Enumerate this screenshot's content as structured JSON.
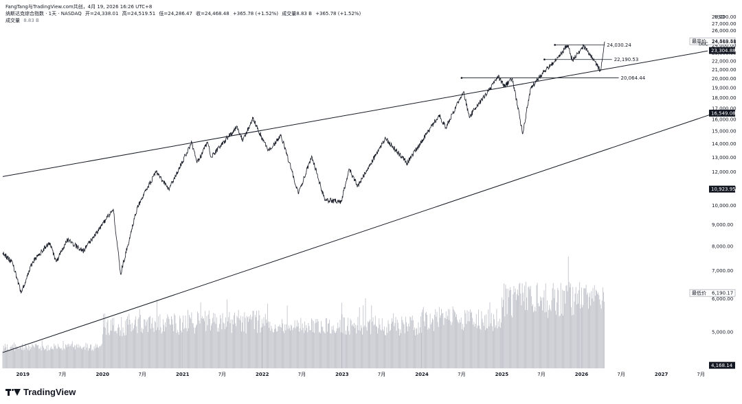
{
  "header": {
    "author_line": "FangTang与TradingView.com共创，4月 19, 2026 16:26 UTC+8",
    "symbol_name": "纳斯达克综合指数 · 1天 · NASDAQ",
    "open": "开=24,338.01",
    "high": "高=24,519.51",
    "low": "低=24,286.47",
    "close": "收=24,468.48",
    "change": "+365.78 (+1.52%)",
    "volume_label": "成交量8.83 B",
    "volume_change": "+365.78 (+1.52%)",
    "volume_pane_label": "成交量",
    "volume_pane_value": "8.83 B"
  },
  "footer": {
    "brand": "TradingView"
  },
  "chart_data": {
    "type": "line",
    "currency": "USD",
    "scale": "log",
    "ylim": [
      4100,
      28500
    ],
    "xlim": [
      "2018-10",
      "2027-08"
    ],
    "y_ticks": [
      "28,000.00",
      "27,000.00",
      "26,000.00",
      "24,000.00",
      "23,000.00",
      "22,000.00",
      "21,000.00",
      "20,000.00",
      "19,000.00",
      "18,000.00",
      "17,000.00",
      "16,000.00",
      "15,000.00",
      "14,000.00",
      "13,000.00",
      "12,000.00",
      "11,000.00",
      "10,000.00",
      "9,000.00",
      "8,000.00",
      "7,000.00",
      "6,000.00",
      "5,000.00"
    ],
    "x_ticks": [
      {
        "date": "2019-01",
        "label": "2019"
      },
      {
        "date": "2019-07",
        "label": "7月"
      },
      {
        "date": "2020-01",
        "label": "2020"
      },
      {
        "date": "2020-07",
        "label": "7月"
      },
      {
        "date": "2021-01",
        "label": "2021"
      },
      {
        "date": "2021-07",
        "label": "7月"
      },
      {
        "date": "2022-01",
        "label": "2022"
      },
      {
        "date": "2022-07",
        "label": "7月"
      },
      {
        "date": "2023-01",
        "label": "2023"
      },
      {
        "date": "2023-07",
        "label": "7月"
      },
      {
        "date": "2024-01",
        "label": "2024"
      },
      {
        "date": "2024-07",
        "label": "7月"
      },
      {
        "date": "2025-01",
        "label": "2025"
      },
      {
        "date": "2025-07",
        "label": "7月"
      },
      {
        "date": "2026-01",
        "label": "2026"
      },
      {
        "date": "2026-07",
        "label": "7月"
      },
      {
        "date": "2027-01",
        "label": "2027"
      },
      {
        "date": "2027-07",
        "label": "7月"
      }
    ],
    "series": [
      {
        "symbol": "IXIC",
        "points": [
          [
            "2018-10-01",
            7700
          ],
          [
            "2018-11-15",
            7300
          ],
          [
            "2018-12-24",
            6190
          ],
          [
            "2019-02-15",
            7350
          ],
          [
            "2019-05-03",
            8150
          ],
          [
            "2019-06-03",
            7330
          ],
          [
            "2019-07-26",
            8300
          ],
          [
            "2019-10-03",
            7780
          ],
          [
            "2019-12-31",
            9000
          ],
          [
            "2020-02-19",
            9800
          ],
          [
            "2020-03-23",
            6860
          ],
          [
            "2020-06-08",
            9900
          ],
          [
            "2020-09-02",
            12000
          ],
          [
            "2020-10-30",
            10900
          ],
          [
            "2021-02-12",
            14100
          ],
          [
            "2021-03-08",
            12600
          ],
          [
            "2021-04-26",
            14100
          ],
          [
            "2021-05-12",
            13000
          ],
          [
            "2021-09-07",
            15400
          ],
          [
            "2021-10-04",
            14250
          ],
          [
            "2021-11-19",
            16060
          ],
          [
            "2022-01-27",
            13500
          ],
          [
            "2022-03-29",
            14600
          ],
          [
            "2022-06-16",
            10650
          ],
          [
            "2022-08-15",
            13100
          ],
          [
            "2022-10-13",
            10300
          ],
          [
            "2022-12-28",
            10200
          ],
          [
            "2023-02-02",
            12200
          ],
          [
            "2023-03-13",
            11100
          ],
          [
            "2023-07-19",
            14400
          ],
          [
            "2023-10-26",
            12600
          ],
          [
            "2024-03-21",
            16400
          ],
          [
            "2024-04-19",
            15280
          ],
          [
            "2024-07-10",
            18600
          ],
          [
            "2024-08-05",
            16200
          ],
          [
            "2024-12-16",
            20170
          ],
          [
            "2025-01-13",
            19100
          ],
          [
            "2025-02-18",
            20060
          ],
          [
            "2025-04-07",
            14780
          ],
          [
            "2025-05-13",
            19000
          ],
          [
            "2025-07-28",
            21200
          ],
          [
            "2025-09-10",
            22200
          ],
          [
            "2025-10-29",
            24020
          ],
          [
            "2025-11-20",
            22100
          ],
          [
            "2026-01-10",
            23900
          ],
          [
            "2026-02-20",
            22400
          ],
          [
            "2026-03-10",
            21600
          ],
          [
            "2026-03-28",
            20850
          ],
          [
            "2026-04-10",
            23000
          ],
          [
            "2026-04-17",
            24468
          ]
        ]
      }
    ],
    "volume": {
      "unit": "B",
      "last": 8.83,
      "segments": [
        {
          "from": "2018-10",
          "to": "2019-12",
          "min": 1.9,
          "max": 2.7
        },
        {
          "from": "2020-01",
          "to": "2020-12",
          "min": 3.5,
          "max": 6.0
        },
        {
          "from": "2021-01",
          "to": "2021-12",
          "min": 3.8,
          "max": 6.4
        },
        {
          "from": "2022-01",
          "to": "2022-12",
          "min": 3.8,
          "max": 5.6
        },
        {
          "from": "2023-01",
          "to": "2023-12",
          "min": 3.6,
          "max": 5.8
        },
        {
          "from": "2024-01",
          "to": "2024-12",
          "min": 4.0,
          "max": 6.5
        },
        {
          "from": "2025-01",
          "to": "2025-12",
          "min": 5.5,
          "max": 9.5
        },
        {
          "from": "2026-01",
          "to": "2026-04",
          "min": 6.5,
          "max": 9.2
        }
      ]
    },
    "channel_lines": [
      {
        "name": "upper",
        "from": [
          "2018-10-01",
          11700
        ],
        "to": [
          "2027-08-01",
          23250
        ]
      },
      {
        "name": "lower",
        "from": [
          "2018-10-01",
          4470
        ],
        "to": [
          "2027-09-01",
          16540
        ]
      }
    ],
    "horizontal_levels": [
      {
        "value": 24030.24,
        "label": "24,030.24",
        "from": "2025-09-01",
        "to": "2026-04-17"
      },
      {
        "value": 22190.53,
        "label": "22,190.53",
        "from": "2025-07-15",
        "to": "2026-05-20"
      },
      {
        "value": 20064.44,
        "label": "20,064.44",
        "from": "2024-07-01",
        "to": "2026-06-20"
      }
    ],
    "price_labels": [
      {
        "title": "最高价",
        "value": 24519.51,
        "text": "24,519.51",
        "style": "outline"
      },
      {
        "title": "",
        "value": 24468.48,
        "text": "24,468.48",
        "style": "plain"
      },
      {
        "title": "IXIC",
        "value": 24150,
        "text": "",
        "style": "symbol"
      },
      {
        "title": "",
        "value": 23304.88,
        "text": "23,304.88",
        "style": "dark"
      },
      {
        "title": "",
        "value": 16549.08,
        "text": "16,549.08",
        "style": "dark"
      },
      {
        "title": "",
        "value": 10923.95,
        "text": "10,923.95",
        "style": "dark"
      },
      {
        "title": "最低价",
        "value": 6190.17,
        "text": "6,190.17",
        "style": "outline"
      },
      {
        "title": "",
        "value": 4168.14,
        "text": "4,168.14",
        "style": "dark"
      }
    ],
    "colors": {
      "price": "#131722",
      "volume": "#b2b5be",
      "badge_dark": "#131722",
      "grid_text": "#131722"
    }
  }
}
